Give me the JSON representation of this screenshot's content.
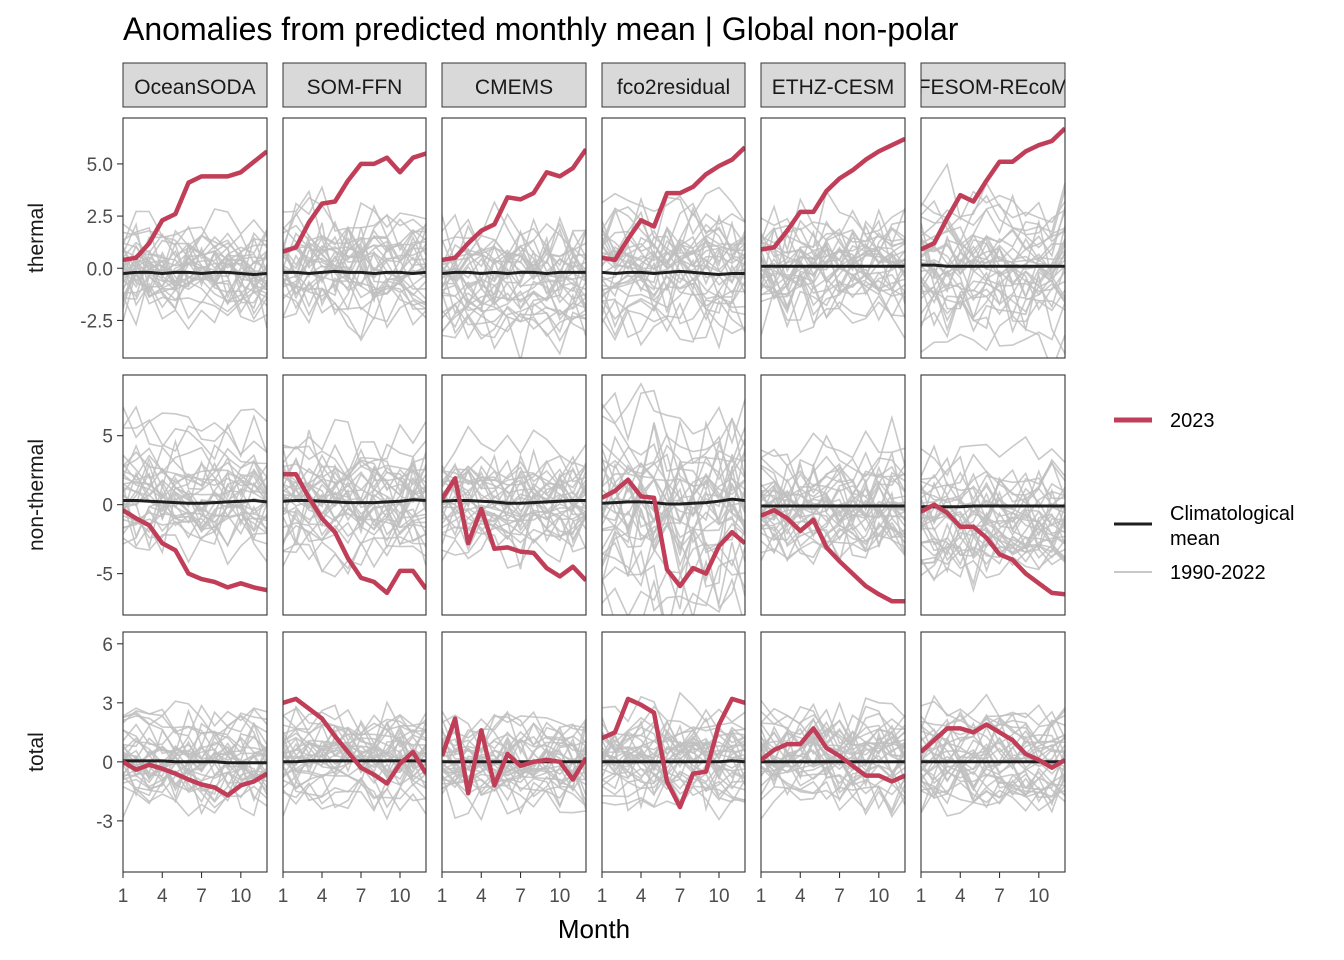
{
  "chart_data": {
    "type": "line",
    "title": "Anomalies from predicted monthly mean | Global non-polar",
    "xlabel": "Month",
    "x": [
      1,
      2,
      3,
      4,
      5,
      6,
      7,
      8,
      9,
      10,
      11,
      12
    ],
    "x_ticks": [
      "1",
      "4",
      "7",
      "10"
    ],
    "grid": false,
    "legend_position": "right",
    "columns": [
      "OceanSODA",
      "SOM-FFN",
      "CMEMS",
      "fco2residual",
      "ETHZ-CESM",
      "FESOM-REcoM"
    ],
    "rows": [
      {
        "label": "thermal",
        "ylim": [
          -4.3,
          7.2
        ],
        "y_ticks": [
          {
            "v": 5.0,
            "t": "5.0"
          },
          {
            "v": 2.5,
            "t": "2.5"
          },
          {
            "v": 0.0,
            "t": "0.0"
          },
          {
            "v": -2.5,
            "t": "-2.5"
          }
        ],
        "climatological_mean": [
          [
            -0.25,
            -0.2,
            -0.2,
            -0.25,
            -0.2,
            -0.2,
            -0.25,
            -0.2,
            -0.2,
            -0.25,
            -0.3,
            -0.25
          ],
          [
            -0.2,
            -0.2,
            -0.25,
            -0.2,
            -0.15,
            -0.2,
            -0.2,
            -0.25,
            -0.2,
            -0.2,
            -0.25,
            -0.2
          ],
          [
            -0.25,
            -0.2,
            -0.2,
            -0.25,
            -0.2,
            -0.25,
            -0.2,
            -0.2,
            -0.25,
            -0.2,
            -0.2,
            -0.2
          ],
          [
            -0.2,
            -0.25,
            -0.2,
            -0.2,
            -0.25,
            -0.2,
            -0.15,
            -0.2,
            -0.25,
            -0.3,
            -0.25,
            -0.25
          ],
          [
            0.1,
            0.1,
            0.1,
            0.1,
            0.1,
            0.1,
            0.1,
            0.1,
            0.1,
            0.1,
            0.1,
            0.1
          ],
          [
            0.15,
            0.15,
            0.1,
            0.1,
            0.1,
            0.1,
            0.1,
            0.1,
            0.1,
            0.1,
            0.1,
            0.1
          ]
        ],
        "series_2023": [
          [
            0.4,
            0.5,
            1.2,
            2.3,
            2.6,
            4.1,
            4.4,
            4.4,
            4.4,
            4.6,
            5.1,
            5.6
          ],
          [
            0.8,
            1.0,
            2.2,
            3.1,
            3.2,
            4.2,
            5.0,
            5.0,
            5.3,
            4.6,
            5.3,
            5.5
          ],
          [
            0.4,
            0.5,
            1.2,
            1.8,
            2.1,
            3.4,
            3.3,
            3.6,
            4.6,
            4.4,
            4.8,
            5.7
          ],
          [
            0.5,
            0.4,
            1.4,
            2.3,
            2.0,
            3.6,
            3.6,
            3.9,
            4.5,
            4.9,
            5.2,
            5.8
          ],
          [
            0.9,
            1.0,
            1.8,
            2.7,
            2.7,
            3.7,
            4.3,
            4.7,
            5.2,
            5.6,
            5.9,
            6.2
          ],
          [
            0.9,
            1.2,
            2.4,
            3.5,
            3.2,
            4.2,
            5.1,
            5.1,
            5.6,
            5.9,
            6.1,
            6.7
          ]
        ]
      },
      {
        "label": "non-thermal",
        "ylim": [
          -8.0,
          9.4
        ],
        "y_ticks": [
          {
            "v": 5,
            "t": "5"
          },
          {
            "v": 0,
            "t": "0"
          },
          {
            "v": -5,
            "t": "-5"
          }
        ],
        "climatological_mean": [
          [
            0.3,
            0.3,
            0.25,
            0.2,
            0.15,
            0.1,
            0.1,
            0.15,
            0.2,
            0.25,
            0.3,
            0.2
          ],
          [
            0.25,
            0.3,
            0.3,
            0.25,
            0.2,
            0.15,
            0.15,
            0.15,
            0.2,
            0.25,
            0.35,
            0.3
          ],
          [
            0.25,
            0.3,
            0.3,
            0.25,
            0.2,
            0.1,
            0.1,
            0.15,
            0.2,
            0.25,
            0.3,
            0.3
          ],
          [
            0.1,
            0.15,
            0.2,
            0.2,
            0.15,
            0.05,
            0.05,
            0.1,
            0.15,
            0.25,
            0.4,
            0.3
          ],
          [
            -0.1,
            -0.1,
            -0.1,
            -0.1,
            -0.1,
            -0.1,
            -0.1,
            -0.1,
            -0.1,
            -0.1,
            -0.1,
            -0.1
          ],
          [
            -0.15,
            -0.15,
            -0.15,
            -0.15,
            -0.1,
            -0.1,
            -0.1,
            -0.1,
            -0.1,
            -0.1,
            -0.1,
            -0.1
          ]
        ],
        "series_2023": [
          [
            -0.4,
            -1.0,
            -1.5,
            -2.8,
            -3.3,
            -5.0,
            -5.4,
            -5.6,
            -6.0,
            -5.7,
            -6.0,
            -6.2
          ],
          [
            2.2,
            2.2,
            0.5,
            -1.0,
            -2.0,
            -3.9,
            -5.3,
            -5.6,
            -6.4,
            -4.8,
            -4.8,
            -6.1
          ],
          [
            0.4,
            1.9,
            -2.8,
            -0.3,
            -3.2,
            -3.1,
            -3.4,
            -3.5,
            -4.6,
            -5.2,
            -4.5,
            -5.5
          ],
          [
            0.5,
            1.0,
            1.8,
            0.6,
            0.5,
            -4.7,
            -5.9,
            -4.6,
            -5.0,
            -3.0,
            -2.0,
            -2.8
          ],
          [
            -0.8,
            -0.4,
            -1.0,
            -1.9,
            -1.1,
            -3.1,
            -4.1,
            -5.0,
            -5.9,
            -6.5,
            -7.0,
            -7.0
          ],
          [
            -0.5,
            0.0,
            -0.6,
            -1.6,
            -1.6,
            -2.4,
            -3.6,
            -4.0,
            -5.0,
            -5.7,
            -6.4,
            -6.5
          ]
        ]
      },
      {
        "label": "total",
        "ylim": [
          -5.6,
          6.6
        ],
        "y_ticks": [
          {
            "v": 6,
            "t": "6"
          },
          {
            "v": 3,
            "t": "3"
          },
          {
            "v": 0,
            "t": "0"
          },
          {
            "v": -3,
            "t": "-3"
          }
        ],
        "climatological_mean": [
          [
            0.05,
            0.05,
            0.05,
            0.05,
            0.0,
            0.0,
            0.0,
            0.0,
            -0.05,
            -0.05,
            -0.05,
            -0.05
          ],
          [
            0.0,
            0.0,
            0.05,
            0.05,
            0.05,
            0.05,
            0.05,
            0.05,
            0.05,
            0.05,
            0.05,
            0.05
          ],
          [
            0.0,
            0.0,
            0.0,
            0.0,
            0.0,
            0.0,
            0.0,
            0.0,
            0.0,
            0.0,
            0.0,
            0.0
          ],
          [
            0.0,
            0.0,
            0.0,
            0.0,
            0.0,
            0.0,
            0.0,
            0.0,
            0.0,
            0.0,
            0.05,
            0.0
          ],
          [
            0.0,
            0.0,
            0.0,
            0.0,
            0.0,
            0.0,
            0.0,
            0.0,
            0.0,
            0.0,
            0.0,
            0.0
          ],
          [
            0.0,
            0.0,
            0.0,
            0.0,
            0.0,
            0.0,
            0.0,
            0.0,
            0.0,
            0.0,
            0.0,
            0.0
          ]
        ],
        "series_2023": [
          [
            0.0,
            -0.4,
            -0.15,
            -0.35,
            -0.6,
            -0.9,
            -1.15,
            -1.3,
            -1.7,
            -1.2,
            -1.0,
            -0.6
          ],
          [
            3.0,
            3.2,
            2.7,
            2.2,
            1.3,
            0.5,
            -0.3,
            -0.65,
            -1.1,
            -0.1,
            0.5,
            -0.6
          ],
          [
            0.3,
            2.2,
            -1.6,
            1.6,
            -1.2,
            0.4,
            -0.2,
            0.0,
            0.1,
            0.0,
            -0.9,
            0.2
          ],
          [
            1.2,
            1.5,
            3.2,
            2.9,
            2.5,
            -1.0,
            -2.3,
            -0.6,
            -0.5,
            1.9,
            3.2,
            3.0
          ],
          [
            0.1,
            0.6,
            0.9,
            0.9,
            1.7,
            0.7,
            0.3,
            -0.2,
            -0.7,
            -0.7,
            -1.0,
            -0.7
          ],
          [
            0.5,
            1.1,
            1.7,
            1.7,
            1.5,
            1.9,
            1.5,
            1.1,
            0.4,
            0.1,
            -0.3,
            0.1
          ]
        ]
      }
    ],
    "legend": {
      "entries": [
        {
          "label": "2023",
          "color": "#c13e58"
        },
        {
          "label": "Climatological mean",
          "color": "#1f1f1f"
        },
        {
          "label": "1990-2022",
          "color": "#c8c8c8"
        }
      ]
    },
    "background_years": "1990-2022",
    "colors": {
      "series_2023": "#c13e58",
      "climatology": "#1f1f1f",
      "background": "#c0c0c0",
      "strip_fill": "#d9d9d9"
    }
  },
  "display": {
    "title": "Anomalies from predicted monthly mean | Global non-polar",
    "xlabel": "Month",
    "strips": [
      "OceanSODA",
      "SOM-FFN",
      "CMEMS",
      "fco2residual",
      "ETHZ-CESM",
      "FESOM-REcoM"
    ],
    "legend_2023": "2023",
    "legend_clim_line1": "Climatological",
    "legend_clim_line2": "mean",
    "legend_bg": "1990-2022"
  }
}
